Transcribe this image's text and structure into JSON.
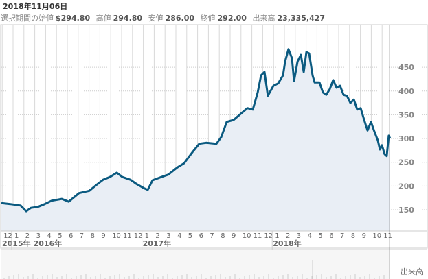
{
  "header": {
    "date": "2018年11月06日",
    "fields": [
      {
        "label": "選択期間の始値",
        "value": "$294.80"
      },
      {
        "label": "高値",
        "value": "294.80"
      },
      {
        "label": "安値",
        "value": "286.00"
      },
      {
        "label": "終値",
        "value": "292.00"
      },
      {
        "label": "出来高",
        "value": "23,335,427"
      }
    ]
  },
  "volume_label": "出来高",
  "colors": {
    "line": "#0b5a80",
    "fill": "#e9eef5"
  },
  "chart_data": {
    "type": "area",
    "ylim": [
      100,
      500
    ],
    "yticks": [
      150,
      200,
      250,
      300,
      350,
      400,
      450
    ],
    "month_labels": [
      {
        "m": -1,
        "t": "12"
      },
      {
        "m": 0,
        "t": "1"
      },
      {
        "m": 1,
        "t": "2"
      },
      {
        "m": 2,
        "t": "3"
      },
      {
        "m": 3,
        "t": "4"
      },
      {
        "m": 4,
        "t": "5"
      },
      {
        "m": 5,
        "t": "6"
      },
      {
        "m": 6,
        "t": "7"
      },
      {
        "m": 7,
        "t": "8"
      },
      {
        "m": 8,
        "t": "9"
      },
      {
        "m": 9,
        "t": "10"
      },
      {
        "m": 10,
        "t": "11"
      },
      {
        "m": 11,
        "t": "12"
      },
      {
        "m": 12,
        "t": "1"
      },
      {
        "m": 13,
        "t": "2"
      },
      {
        "m": 14,
        "t": "3"
      },
      {
        "m": 15,
        "t": "4"
      },
      {
        "m": 16,
        "t": "5"
      },
      {
        "m": 17,
        "t": "6"
      },
      {
        "m": 18,
        "t": "7"
      },
      {
        "m": 19,
        "t": "8"
      },
      {
        "m": 20,
        "t": "9"
      },
      {
        "m": 21,
        "t": "10"
      },
      {
        "m": 22,
        "t": "11"
      },
      {
        "m": 23,
        "t": "12"
      },
      {
        "m": 24,
        "t": "1"
      },
      {
        "m": 25,
        "t": "2"
      },
      {
        "m": 26,
        "t": "3"
      },
      {
        "m": 27,
        "t": "4"
      },
      {
        "m": 28,
        "t": "5"
      },
      {
        "m": 29,
        "t": "6"
      },
      {
        "m": 30,
        "t": "7"
      },
      {
        "m": 31,
        "t": "8"
      },
      {
        "m": 32,
        "t": "9"
      },
      {
        "m": 33,
        "t": "10"
      },
      {
        "m": 34,
        "t": "11"
      }
    ],
    "year_labels": [
      {
        "m": -1.6,
        "t": "2015年"
      },
      {
        "m": 0,
        "t": "2016年"
      },
      {
        "m": 12,
        "t": "2017年"
      },
      {
        "m": 24,
        "t": "2018年"
      }
    ],
    "cursor_month": 34.2,
    "x_unit": "months since Jan 2016",
    "points": [
      [
        -1.58,
        164
      ],
      [
        -0.76,
        162
      ],
      [
        0.19,
        159
      ],
      [
        0.7,
        147
      ],
      [
        1.14,
        154
      ],
      [
        1.77,
        156
      ],
      [
        2.41,
        162
      ],
      [
        3.04,
        169
      ],
      [
        3.99,
        173
      ],
      [
        4.62,
        167
      ],
      [
        5.57,
        185
      ],
      [
        6.52,
        190
      ],
      [
        7.15,
        202
      ],
      [
        7.78,
        213
      ],
      [
        8.42,
        219
      ],
      [
        9.05,
        228
      ],
      [
        9.56,
        219
      ],
      [
        10.32,
        213
      ],
      [
        10.82,
        205
      ],
      [
        11.58,
        195
      ],
      [
        11.9,
        192
      ],
      [
        12.34,
        212
      ],
      [
        13.16,
        219
      ],
      [
        13.8,
        224
      ],
      [
        14.62,
        239
      ],
      [
        15.25,
        248
      ],
      [
        16.01,
        271
      ],
      [
        16.65,
        289
      ],
      [
        17.28,
        291
      ],
      [
        18.23,
        289
      ],
      [
        18.67,
        303
      ],
      [
        19.18,
        335
      ],
      [
        19.81,
        339
      ],
      [
        20.57,
        354
      ],
      [
        21.08,
        364
      ],
      [
        21.58,
        361
      ],
      [
        22.03,
        397
      ],
      [
        22.34,
        433
      ],
      [
        22.66,
        440
      ],
      [
        22.97,
        390
      ],
      [
        23.48,
        411
      ],
      [
        23.92,
        416
      ],
      [
        24.37,
        433
      ],
      [
        24.56,
        462
      ],
      [
        24.87,
        488
      ],
      [
        25.19,
        469
      ],
      [
        25.38,
        421
      ],
      [
        25.7,
        462
      ],
      [
        26.01,
        476
      ],
      [
        26.27,
        440
      ],
      [
        26.52,
        482
      ],
      [
        26.77,
        479
      ],
      [
        27.09,
        433
      ],
      [
        27.28,
        418
      ],
      [
        27.72,
        418
      ],
      [
        28.04,
        397
      ],
      [
        28.35,
        392
      ],
      [
        28.67,
        404
      ],
      [
        28.99,
        423
      ],
      [
        29.3,
        407
      ],
      [
        29.62,
        411
      ],
      [
        29.94,
        392
      ],
      [
        30.25,
        390
      ],
      [
        30.57,
        375
      ],
      [
        30.89,
        382
      ],
      [
        31.2,
        361
      ],
      [
        31.52,
        364
      ],
      [
        31.84,
        339
      ],
      [
        32.15,
        317
      ],
      [
        32.47,
        335
      ],
      [
        32.78,
        315
      ],
      [
        33.1,
        296
      ],
      [
        33.29,
        277
      ],
      [
        33.48,
        286
      ],
      [
        33.73,
        267
      ],
      [
        33.92,
        263
      ],
      [
        34.11,
        306
      ],
      [
        34.24,
        300
      ]
    ]
  }
}
